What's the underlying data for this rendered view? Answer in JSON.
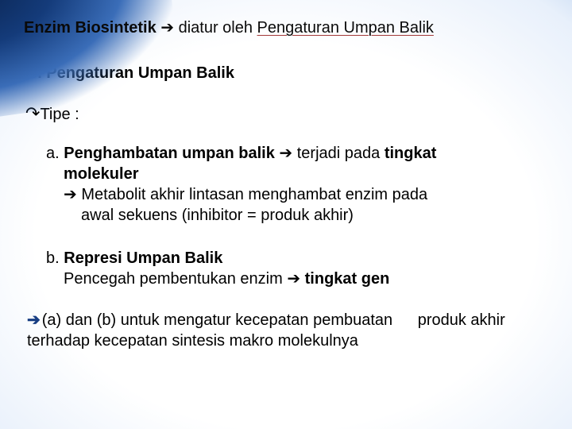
{
  "colors": {
    "bg_center": "#ffffff",
    "bg_mid": "#9bbce6",
    "bg_edge": "#143b7a",
    "bg_corner": "#0a2450",
    "text": "#000000",
    "arrow_dark_blue": "#173d82",
    "underline": "#a33a3a"
  },
  "fonts": {
    "body_family": "Arial",
    "body_size_pt": 15
  },
  "title": {
    "bold1": "Enzim Biosintetik ",
    "arrow": "➔",
    "after_arrow": " diatur oleh ",
    "underlined": "Pengaturan Umpan Balik"
  },
  "section": "3. Pengaturan Umpan Balik",
  "tipe_label": "Tipe :",
  "item_a": {
    "prefix": "a. ",
    "bold1": "Penghambatan umpan balik ",
    "arrow": "➔",
    "mid": " terjadi pada ",
    "bold2": "tingkat",
    "bold2b": "molekuler",
    "sub_arrow": "➔",
    "sub_text1": " Metabolit akhir lintasan menghambat enzim pada",
    "sub_text2": "awal sekuens (inhibitor = produk akhir)"
  },
  "item_b": {
    "prefix": "b. ",
    "bold1": "Represi Umpan Balik",
    "line2a": "Pencegah pembentukan enzim ",
    "arrow": "➔",
    "bold2": " tingkat gen"
  },
  "conclusion": {
    "arrow": "➔",
    "line1": "(a) dan (b) untuk mengatur kecepatan pembuatan",
    "line2": "produk akhir terhadap kecepatan sintesis makro molekulnya"
  }
}
